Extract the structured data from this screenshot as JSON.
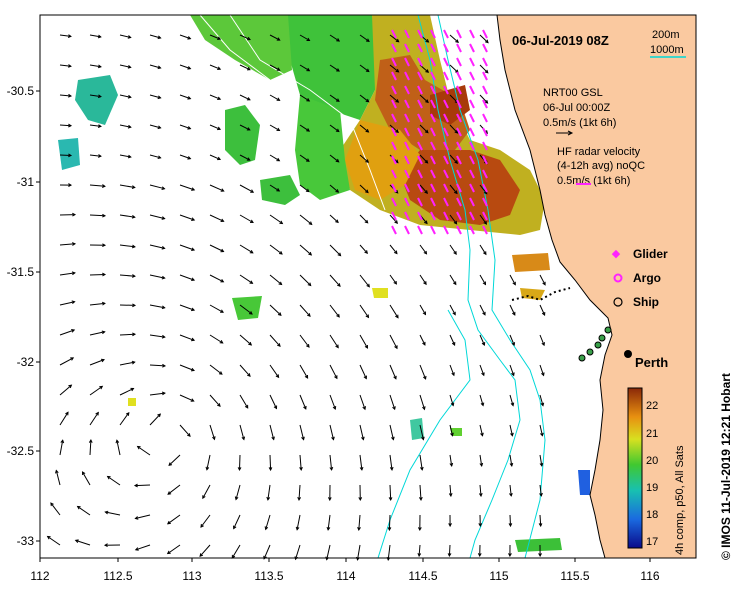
{
  "title": "06-Jul-2019 08Z",
  "x_ticks": [
    "112",
    "112.5",
    "113",
    "113.5",
    "114",
    "114.5",
    "115",
    "115.5",
    "116"
  ],
  "y_ticks": [
    "-30.5",
    "-31",
    "-31.5",
    "-32",
    "-32.5",
    "-33"
  ],
  "bathymetry_legend": {
    "line1": "200m",
    "line2": "1000m"
  },
  "nrt": {
    "line1": "NRT00 GSL",
    "line2": "06-Jul 00:00Z",
    "line3": "0.5m/s (1kt 6h)"
  },
  "hf": {
    "line1": "HF radar velocity",
    "line2": "(4-12h avg) noQC",
    "line3": "0.5m/s (1kt 6h)"
  },
  "platforms": {
    "glider": "Glider",
    "argo": "Argo",
    "ship": "Ship"
  },
  "city": "Perth",
  "colorbar": {
    "ticks": [
      "22",
      "21",
      "20",
      "19",
      "18",
      "17"
    ],
    "label": "4h comp, p50, All Sats",
    "min": 16.6,
    "max": 22.5
  },
  "credit": "© IMOS 11-Jul-2019 12:21 Hobart",
  "colors": {
    "land": "#fac9a0",
    "vector": "#000000",
    "hf_vector": "#ff22ff",
    "isobath": "#00d8d8"
  }
}
